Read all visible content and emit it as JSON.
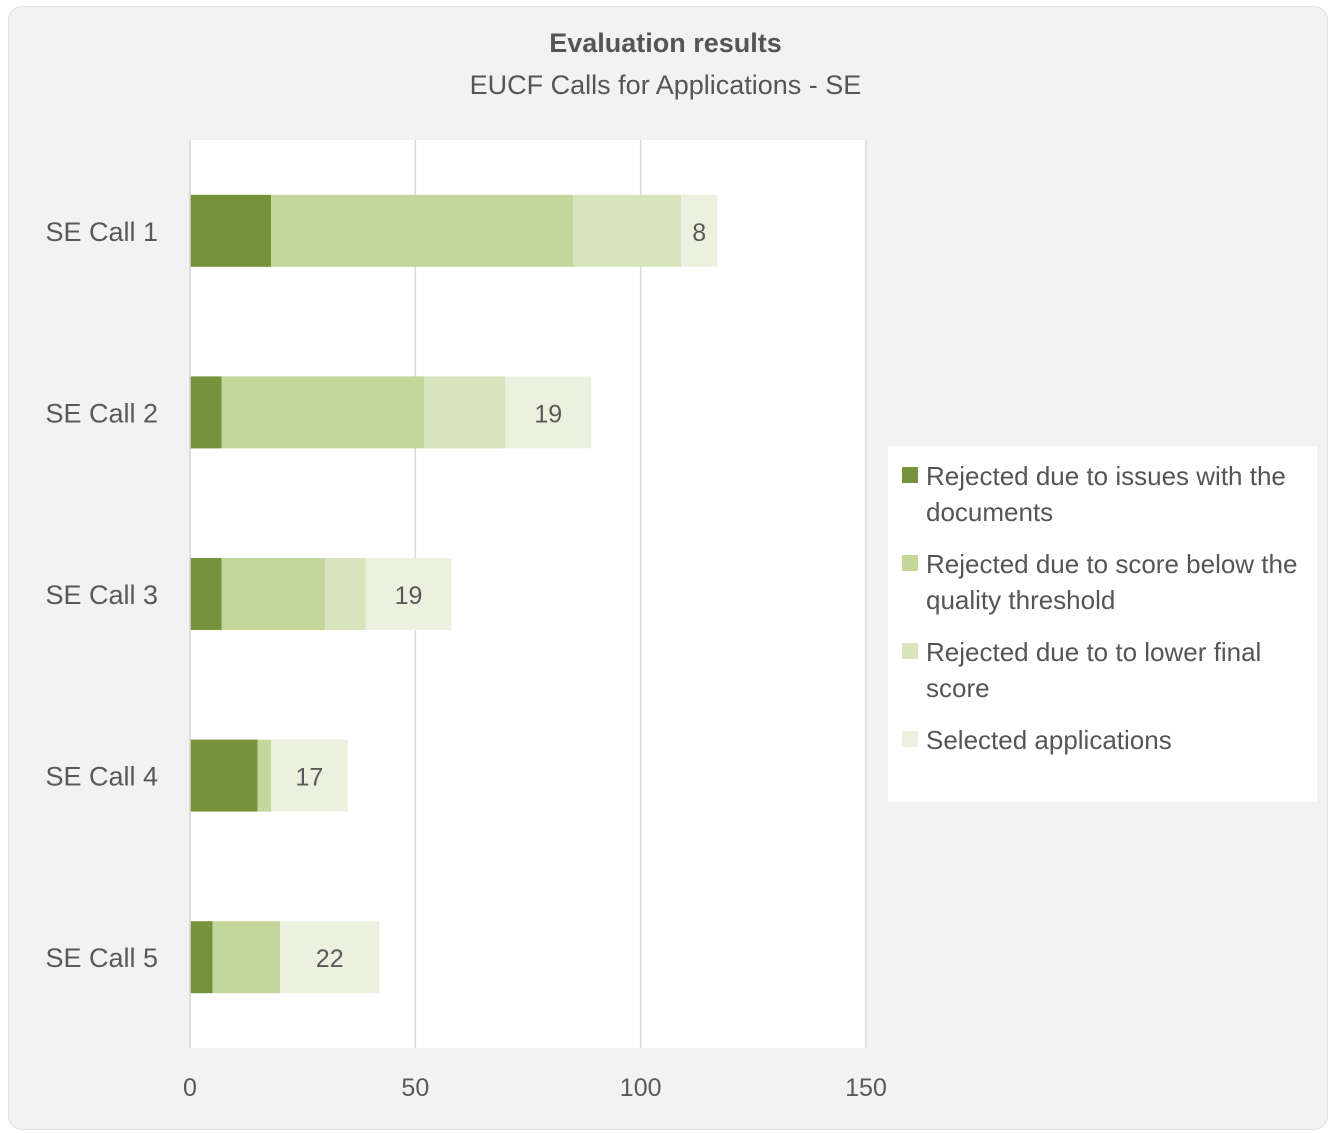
{
  "chart_data": {
    "type": "bar",
    "orientation": "horizontal",
    "stacked": true,
    "title": "Evaluation results",
    "subtitle": "EUCF Calls for Applications - SE",
    "categories": [
      "SE Call 1",
      "SE Call 2",
      "SE Call 3",
      "SE Call 4",
      "SE Call 5"
    ],
    "series": [
      {
        "name": "Rejected due to issues with the documents",
        "color": "#76923c",
        "values": [
          18,
          7,
          7,
          15,
          5
        ]
      },
      {
        "name": "Rejected due to score below the quality threshold",
        "color": "#c4d79b",
        "values": [
          67,
          45,
          23,
          3,
          15
        ]
      },
      {
        "name": "Rejected due to to lower final score",
        "color": "#d8e4bc",
        "values": [
          24,
          18,
          9,
          0,
          0
        ]
      },
      {
        "name": "Selected applications",
        "color": "#ebf1de",
        "values": [
          8,
          19,
          19,
          17,
          22
        ]
      }
    ],
    "data_labels_series": "Selected applications",
    "x_ticks": [
      0,
      50,
      100,
      150
    ],
    "xlim": [
      0,
      150
    ],
    "grid": true,
    "legend_position": "right"
  }
}
